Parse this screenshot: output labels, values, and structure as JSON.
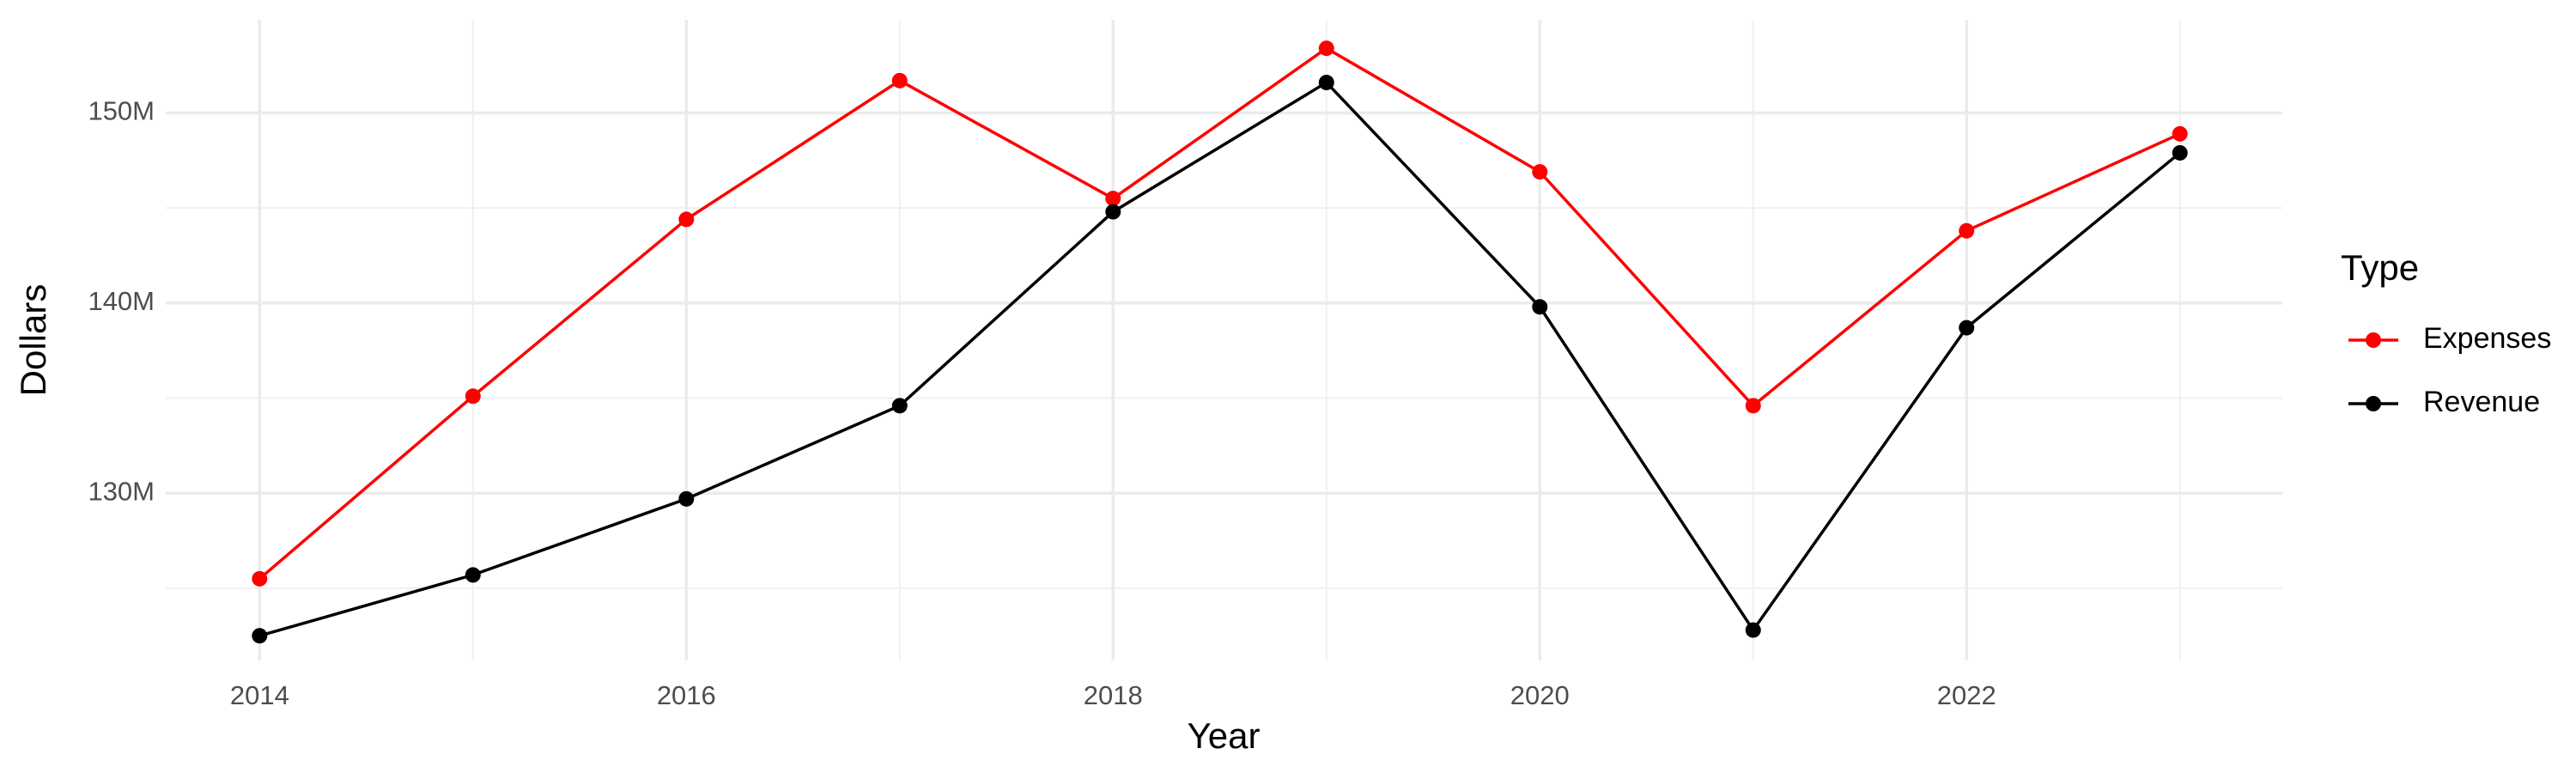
{
  "chart_data": {
    "type": "line",
    "x_label": "Year",
    "y_label": "Dollars",
    "legend_title": "Type",
    "legend_position": "right",
    "x": [
      2014,
      2015,
      2016,
      2017,
      2018,
      2019,
      2020,
      2021,
      2022,
      2023
    ],
    "series": [
      {
        "name": "Expenses",
        "color": "#ff0000",
        "values": [
          125500000,
          135100000,
          144400000,
          151700000,
          145500000,
          153400000,
          146900000,
          134600000,
          143800000,
          148900000
        ]
      },
      {
        "name": "Revenue",
        "color": "#000000",
        "values": [
          122500000,
          125700000,
          129700000,
          134600000,
          144800000,
          151600000,
          139800000,
          122800000,
          138700000,
          147900000
        ]
      }
    ],
    "xlim": [
      2013.56,
      2023.48
    ],
    "xticks": [
      2014,
      2016,
      2018,
      2020,
      2022
    ],
    "x_minor_grid": [
      2015,
      2017,
      2019,
      2021,
      2023
    ],
    "ylim": [
      121200000,
      154900000
    ],
    "yticks": [
      {
        "value": 130000000,
        "label": "130M"
      },
      {
        "value": 140000000,
        "label": "140M"
      },
      {
        "value": 150000000,
        "label": "150M"
      }
    ],
    "y_minor_grid": [
      125000000,
      135000000,
      145000000
    ],
    "grid": true
  }
}
